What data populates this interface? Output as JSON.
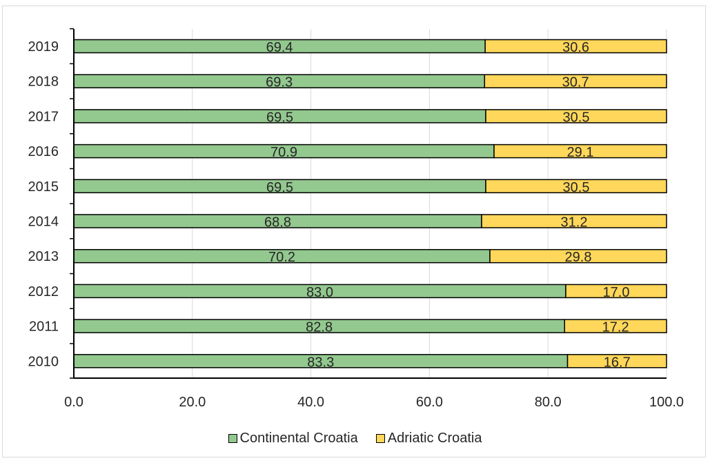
{
  "chart_data": {
    "type": "bar",
    "orientation": "horizontal",
    "stacked": true,
    "categories": [
      "2019",
      "2018",
      "2017",
      "2016",
      "2015",
      "2014",
      "2013",
      "2012",
      "2011",
      "2010"
    ],
    "series": [
      {
        "name": "Continental Croatia",
        "color": "#93c88f",
        "values": [
          69.4,
          69.3,
          69.5,
          70.9,
          69.5,
          68.8,
          70.2,
          83.0,
          82.8,
          83.3
        ],
        "labels": [
          "69.4",
          "69.3",
          "69.5",
          "70.9",
          "69.5",
          "68.8",
          "70.2",
          "83.0",
          "82.8",
          "83.3"
        ]
      },
      {
        "name": "Adriatic Croatia",
        "color": "#ffd75a",
        "values": [
          30.6,
          30.7,
          30.5,
          29.1,
          30.5,
          31.2,
          29.8,
          17.0,
          17.2,
          16.7
        ],
        "labels": [
          "30.6",
          "30.7",
          "30.5",
          "29.1",
          "30.5",
          "31.2",
          "29.8",
          "17.0",
          "17.2",
          "16.7"
        ]
      }
    ],
    "xlim": [
      0,
      100
    ],
    "xticks": [
      "0.0",
      "20.0",
      "40.0",
      "60.0",
      "80.0",
      "100.0"
    ],
    "xtick_values": [
      0,
      20,
      40,
      60,
      80,
      100
    ],
    "grid": "vertical",
    "legend_position": "bottom",
    "title": "",
    "xlabel": "",
    "ylabel": ""
  },
  "legend": {
    "continental": "Continental Croatia",
    "adriatic": "Adriatic Croatia"
  }
}
